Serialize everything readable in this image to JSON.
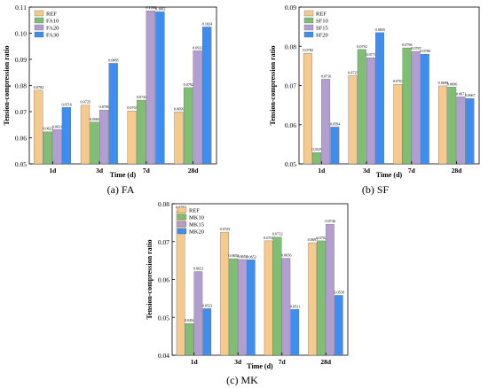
{
  "figure": {
    "panels": [
      {
        "id": "a",
        "caption": "(a) FA"
      },
      {
        "id": "b",
        "caption": "(b) SF"
      },
      {
        "id": "c",
        "caption": "(c) MK"
      }
    ]
  },
  "chart_data": [
    {
      "type": "bar",
      "panel": "a",
      "categories": [
        "1d",
        "3d",
        "7d",
        "28d"
      ],
      "xlabel": "Time  (d)",
      "ylabel": "Tension-compression ratio",
      "ylim": [
        0.05,
        0.11
      ],
      "yticks": [
        "0.05",
        "0.06",
        "0.07",
        "0.08",
        "0.09",
        "0.10",
        "0.11"
      ],
      "ytick_values": [
        0.05,
        0.06,
        0.07,
        0.08,
        0.09,
        0.1,
        0.11
      ],
      "legend_position": "top-left",
      "grid": false,
      "series": [
        {
          "name": "REF",
          "color": "#f6c98c",
          "values": [
            0.0782,
            0.0725,
            0.0703,
            0.0699
          ],
          "labels": [
            "0.0782",
            "0.0725",
            "0.0703",
            "0.0699"
          ]
        },
        {
          "name": "FA10",
          "color": "#7fbf73",
          "values": [
            0.0623,
            0.066,
            0.0744,
            0.0792
          ],
          "labels": [
            "0.0623",
            "0.0660",
            "0.0744",
            "0.0792"
          ]
        },
        {
          "name": "FA20",
          "color": "#b29ed0",
          "values": [
            0.0631,
            0.0706,
            0.1086,
            0.0933
          ],
          "labels": [
            "0.0631",
            "0.0706",
            "0.1086",
            "0.0933"
          ]
        },
        {
          "name": "FA30",
          "color": "#3d8ef0",
          "values": [
            0.0716,
            0.0885,
            0.1082,
            0.1024
          ],
          "labels": [
            "0.0716",
            "0.0885",
            "0.1082",
            "0.1024"
          ]
        }
      ]
    },
    {
      "type": "bar",
      "panel": "b",
      "categories": [
        "1d",
        "3d",
        "7d",
        "28d"
      ],
      "xlabel": "Time  (d)",
      "ylabel": "Tension-compression ratio",
      "ylim": [
        0.05,
        0.09
      ],
      "yticks": [
        "0.05",
        "0.06",
        "0.07",
        "0.08",
        "0.09"
      ],
      "ytick_values": [
        0.05,
        0.06,
        0.07,
        0.08,
        0.09
      ],
      "legend_position": "top-left",
      "grid": false,
      "series": [
        {
          "name": "REF",
          "color": "#f6c98c",
          "values": [
            0.0782,
            0.0725,
            0.0703,
            0.0699
          ],
          "labels": [
            "0.0782",
            "0.0725",
            "0.0703",
            "0.0699"
          ]
        },
        {
          "name": "SF10",
          "color": "#7fbf73",
          "values": [
            0.0529,
            0.0792,
            0.0796,
            0.0696
          ],
          "labels": [
            "0.0529",
            "0.0792",
            "0.0796",
            "0.0696"
          ]
        },
        {
          "name": "SF15",
          "color": "#b29ed0",
          "values": [
            0.0716,
            0.0771,
            0.0787,
            0.0671
          ],
          "labels": [
            "0.0716",
            "0.0771",
            "0.0787",
            "0.0671"
          ]
        },
        {
          "name": "SF20",
          "color": "#3d8ef0",
          "values": [
            0.0594,
            0.0835,
            0.078,
            0.0667
          ],
          "labels": [
            "0.0594",
            "0.0835",
            "0.0780",
            "0.0667"
          ]
        }
      ]
    },
    {
      "type": "bar",
      "panel": "c",
      "categories": [
        "1d",
        "3d",
        "7d",
        "28d"
      ],
      "xlabel": "Time  (d)",
      "ylabel": "Tension-compression ratio",
      "ylim": [
        0.04,
        0.08
      ],
      "yticks": [
        "0.04",
        "0.05",
        "0.06",
        "0.07",
        "0.08"
      ],
      "ytick_values": [
        0.04,
        0.05,
        0.06,
        0.07,
        0.08
      ],
      "legend_position": "top-left",
      "grid": false,
      "series": [
        {
          "name": "REF",
          "color": "#f6c98c",
          "values": [
            0.0782,
            0.0725,
            0.0702,
            0.0697
          ],
          "labels": [
            "0.0782",
            "0.0725",
            "0.0702",
            "0.0697"
          ]
        },
        {
          "name": "MK10",
          "color": "#7fbf73",
          "values": [
            0.0484,
            0.0655,
            0.0712,
            0.0702
          ],
          "labels": [
            "0.0484",
            "0.0655",
            "0.0712",
            "0.0702"
          ]
        },
        {
          "name": "MK15",
          "color": "#b29ed0",
          "values": [
            0.0621,
            0.0653,
            0.0656,
            0.0746
          ],
          "labels": [
            "0.0621",
            "0.0653",
            "0.0656",
            "0.0746"
          ]
        },
        {
          "name": "MK20",
          "color": "#3d8ef0",
          "values": [
            0.0523,
            0.0652,
            0.0521,
            0.0558
          ],
          "labels": [
            "0.0523",
            "0.0652",
            "0.0521",
            "0.0558"
          ]
        }
      ]
    }
  ]
}
